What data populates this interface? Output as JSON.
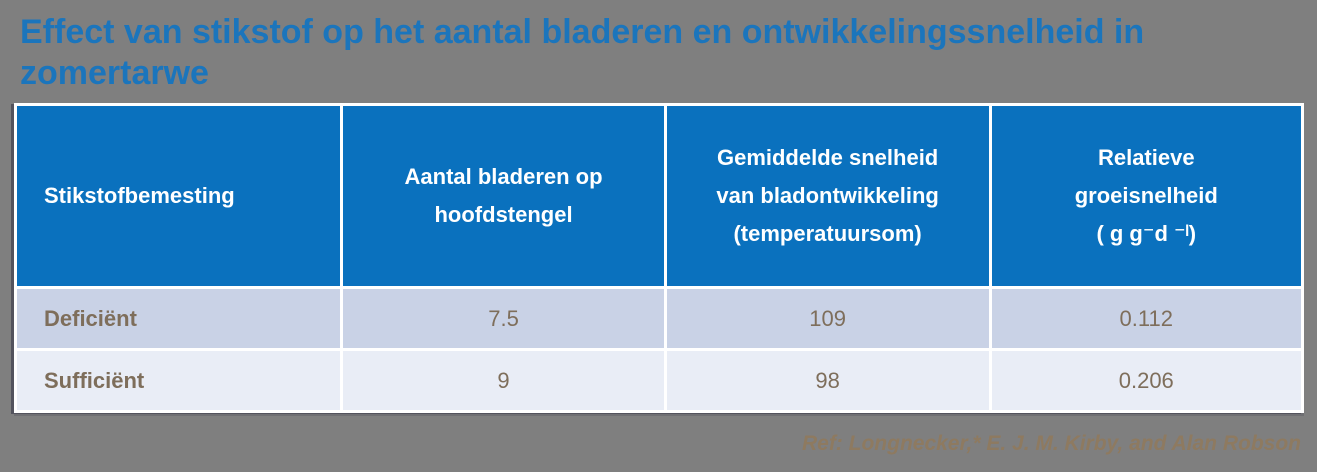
{
  "page": {
    "background_color": "#7F7F7F",
    "title_color": "#1B75BC",
    "header_fill_color": "#0A71BE",
    "row_colors": [
      "#C9D2E6",
      "#E9EDF6"
    ],
    "body_text_color": "#7E6E5B",
    "reference_color": "#8E7A60"
  },
  "title": {
    "text": "Effect van stikstof op het aantal bladeren en ontwikkelingssnelheid in zomertarwe"
  },
  "table": {
    "columns": [
      {
        "lines": [
          "Stikstofbemesting"
        ]
      },
      {
        "lines": [
          "Aantal bladeren op",
          "hoofdstengel"
        ]
      },
      {
        "lines": [
          "Gemiddelde snelheid",
          "van bladontwikkeling",
          "(temperatuursom)"
        ]
      },
      {
        "lines": [
          "Relatieve",
          "groeisnelheid",
          "( g g⁻d ⁻ˡ)"
        ]
      }
    ],
    "rows": [
      {
        "label": "Deficiënt",
        "values": [
          "7.5",
          "109",
          "0.112"
        ]
      },
      {
        "label": "Sufficiënt",
        "values": [
          "9",
          "98",
          "0.206"
        ]
      }
    ]
  },
  "reference": {
    "text": "Ref: Longnecker,* E. J. M. Kirby, and Alan Robson"
  },
  "chart_data": {
    "type": "table",
    "title": "Effect van stikstof op het aantal bladeren en ontwikkelingssnelheid in zomertarwe",
    "columns": [
      "Stikstofbemesting",
      "Aantal bladeren op hoofdstengel",
      "Gemiddelde snelheid van bladontwikkeling (temperatuursom)",
      "Relatieve groeisnelheid ( g g⁻d ⁻ˡ)"
    ],
    "rows": [
      [
        "Deficiënt",
        7.5,
        109,
        0.112
      ],
      [
        "Sufficiënt",
        9,
        98,
        0.206
      ]
    ]
  }
}
